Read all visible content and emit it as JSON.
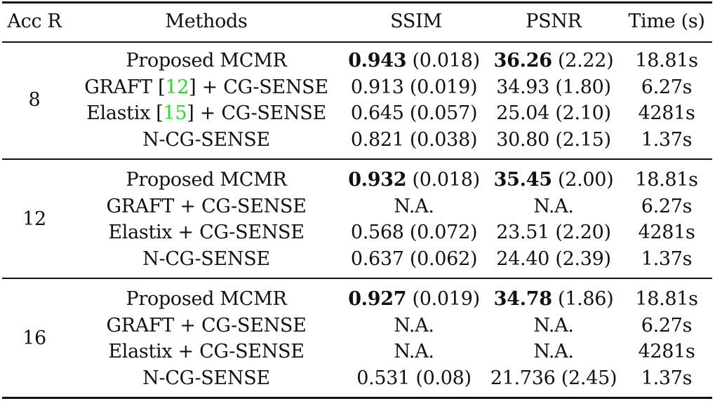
{
  "header": {
    "acc": "Acc R",
    "methods": "Methods",
    "ssim": "SSIM",
    "psnr": "PSNR",
    "time": "Time (s)"
  },
  "groups": [
    {
      "acc": "8",
      "rows": [
        {
          "method": "Proposed MCMR",
          "method_cite": "",
          "method_suffix": "",
          "ssim_mean": "0.943",
          "ssim_sd": "(0.018)",
          "psnr_mean": "36.26",
          "psnr_sd": "(2.22)",
          "bold": true,
          "time": "18.81s"
        },
        {
          "method": "GRAFT [",
          "method_cite": "12",
          "method_suffix": "] + CG-SENSE",
          "ssim_mean": "0.913",
          "ssim_sd": "(0.019)",
          "psnr_mean": "34.93",
          "psnr_sd": "(1.80)",
          "bold": false,
          "time": "6.27s"
        },
        {
          "method": "Elastix [",
          "method_cite": "15",
          "method_suffix": "] + CG-SENSE",
          "ssim_mean": "0.645",
          "ssim_sd": "(0.057)",
          "psnr_mean": "25.04",
          "psnr_sd": "(2.10)",
          "bold": false,
          "time": "4281s"
        },
        {
          "method": "N-CG-SENSE",
          "method_cite": "",
          "method_suffix": "",
          "ssim_mean": "0.821",
          "ssim_sd": "(0.038)",
          "psnr_mean": "30.80",
          "psnr_sd": "(2.15)",
          "bold": false,
          "time": "1.37s"
        }
      ]
    },
    {
      "acc": "12",
      "rows": [
        {
          "method": "Proposed MCMR",
          "method_cite": "",
          "method_suffix": "",
          "ssim_mean": "0.932",
          "ssim_sd": "(0.018)",
          "psnr_mean": "35.45",
          "psnr_sd": "(2.00)",
          "bold": true,
          "time": "18.81s"
        },
        {
          "method": "GRAFT + CG-SENSE",
          "method_cite": "",
          "method_suffix": "",
          "ssim_mean": "N.A.",
          "ssim_sd": "",
          "psnr_mean": "N.A.",
          "psnr_sd": "",
          "bold": false,
          "time": "6.27s"
        },
        {
          "method": "Elastix + CG-SENSE",
          "method_cite": "",
          "method_suffix": "",
          "ssim_mean": "0.568",
          "ssim_sd": "(0.072)",
          "psnr_mean": "23.51",
          "psnr_sd": "(2.20)",
          "bold": false,
          "time": "4281s"
        },
        {
          "method": "N-CG-SENSE",
          "method_cite": "",
          "method_suffix": "",
          "ssim_mean": "0.637",
          "ssim_sd": "(0.062)",
          "psnr_mean": "24.40",
          "psnr_sd": "(2.39)",
          "bold": false,
          "time": "1.37s"
        }
      ]
    },
    {
      "acc": "16",
      "rows": [
        {
          "method": "Proposed MCMR",
          "method_cite": "",
          "method_suffix": "",
          "ssim_mean": "0.927",
          "ssim_sd": "(0.019)",
          "psnr_mean": "34.78",
          "psnr_sd": "(1.86)",
          "bold": true,
          "time": "18.81s"
        },
        {
          "method": "GRAFT + CG-SENSE",
          "method_cite": "",
          "method_suffix": "",
          "ssim_mean": "N.A.",
          "ssim_sd": "",
          "psnr_mean": "N.A.",
          "psnr_sd": "",
          "bold": false,
          "time": "6.27s"
        },
        {
          "method": "Elastix + CG-SENSE",
          "method_cite": "",
          "method_suffix": "",
          "ssim_mean": "N.A.",
          "ssim_sd": "",
          "psnr_mean": "N.A.",
          "psnr_sd": "",
          "bold": false,
          "time": "4281s"
        },
        {
          "method": "N-CG-SENSE",
          "method_cite": "",
          "method_suffix": "",
          "ssim_mean": "0.531",
          "ssim_sd": "(0.08)",
          "psnr_mean": "21.736",
          "psnr_sd": "(2.45)",
          "bold": false,
          "time": "1.37s"
        }
      ]
    }
  ],
  "colors": {
    "citation": "#22dd22",
    "text": "#111111"
  }
}
